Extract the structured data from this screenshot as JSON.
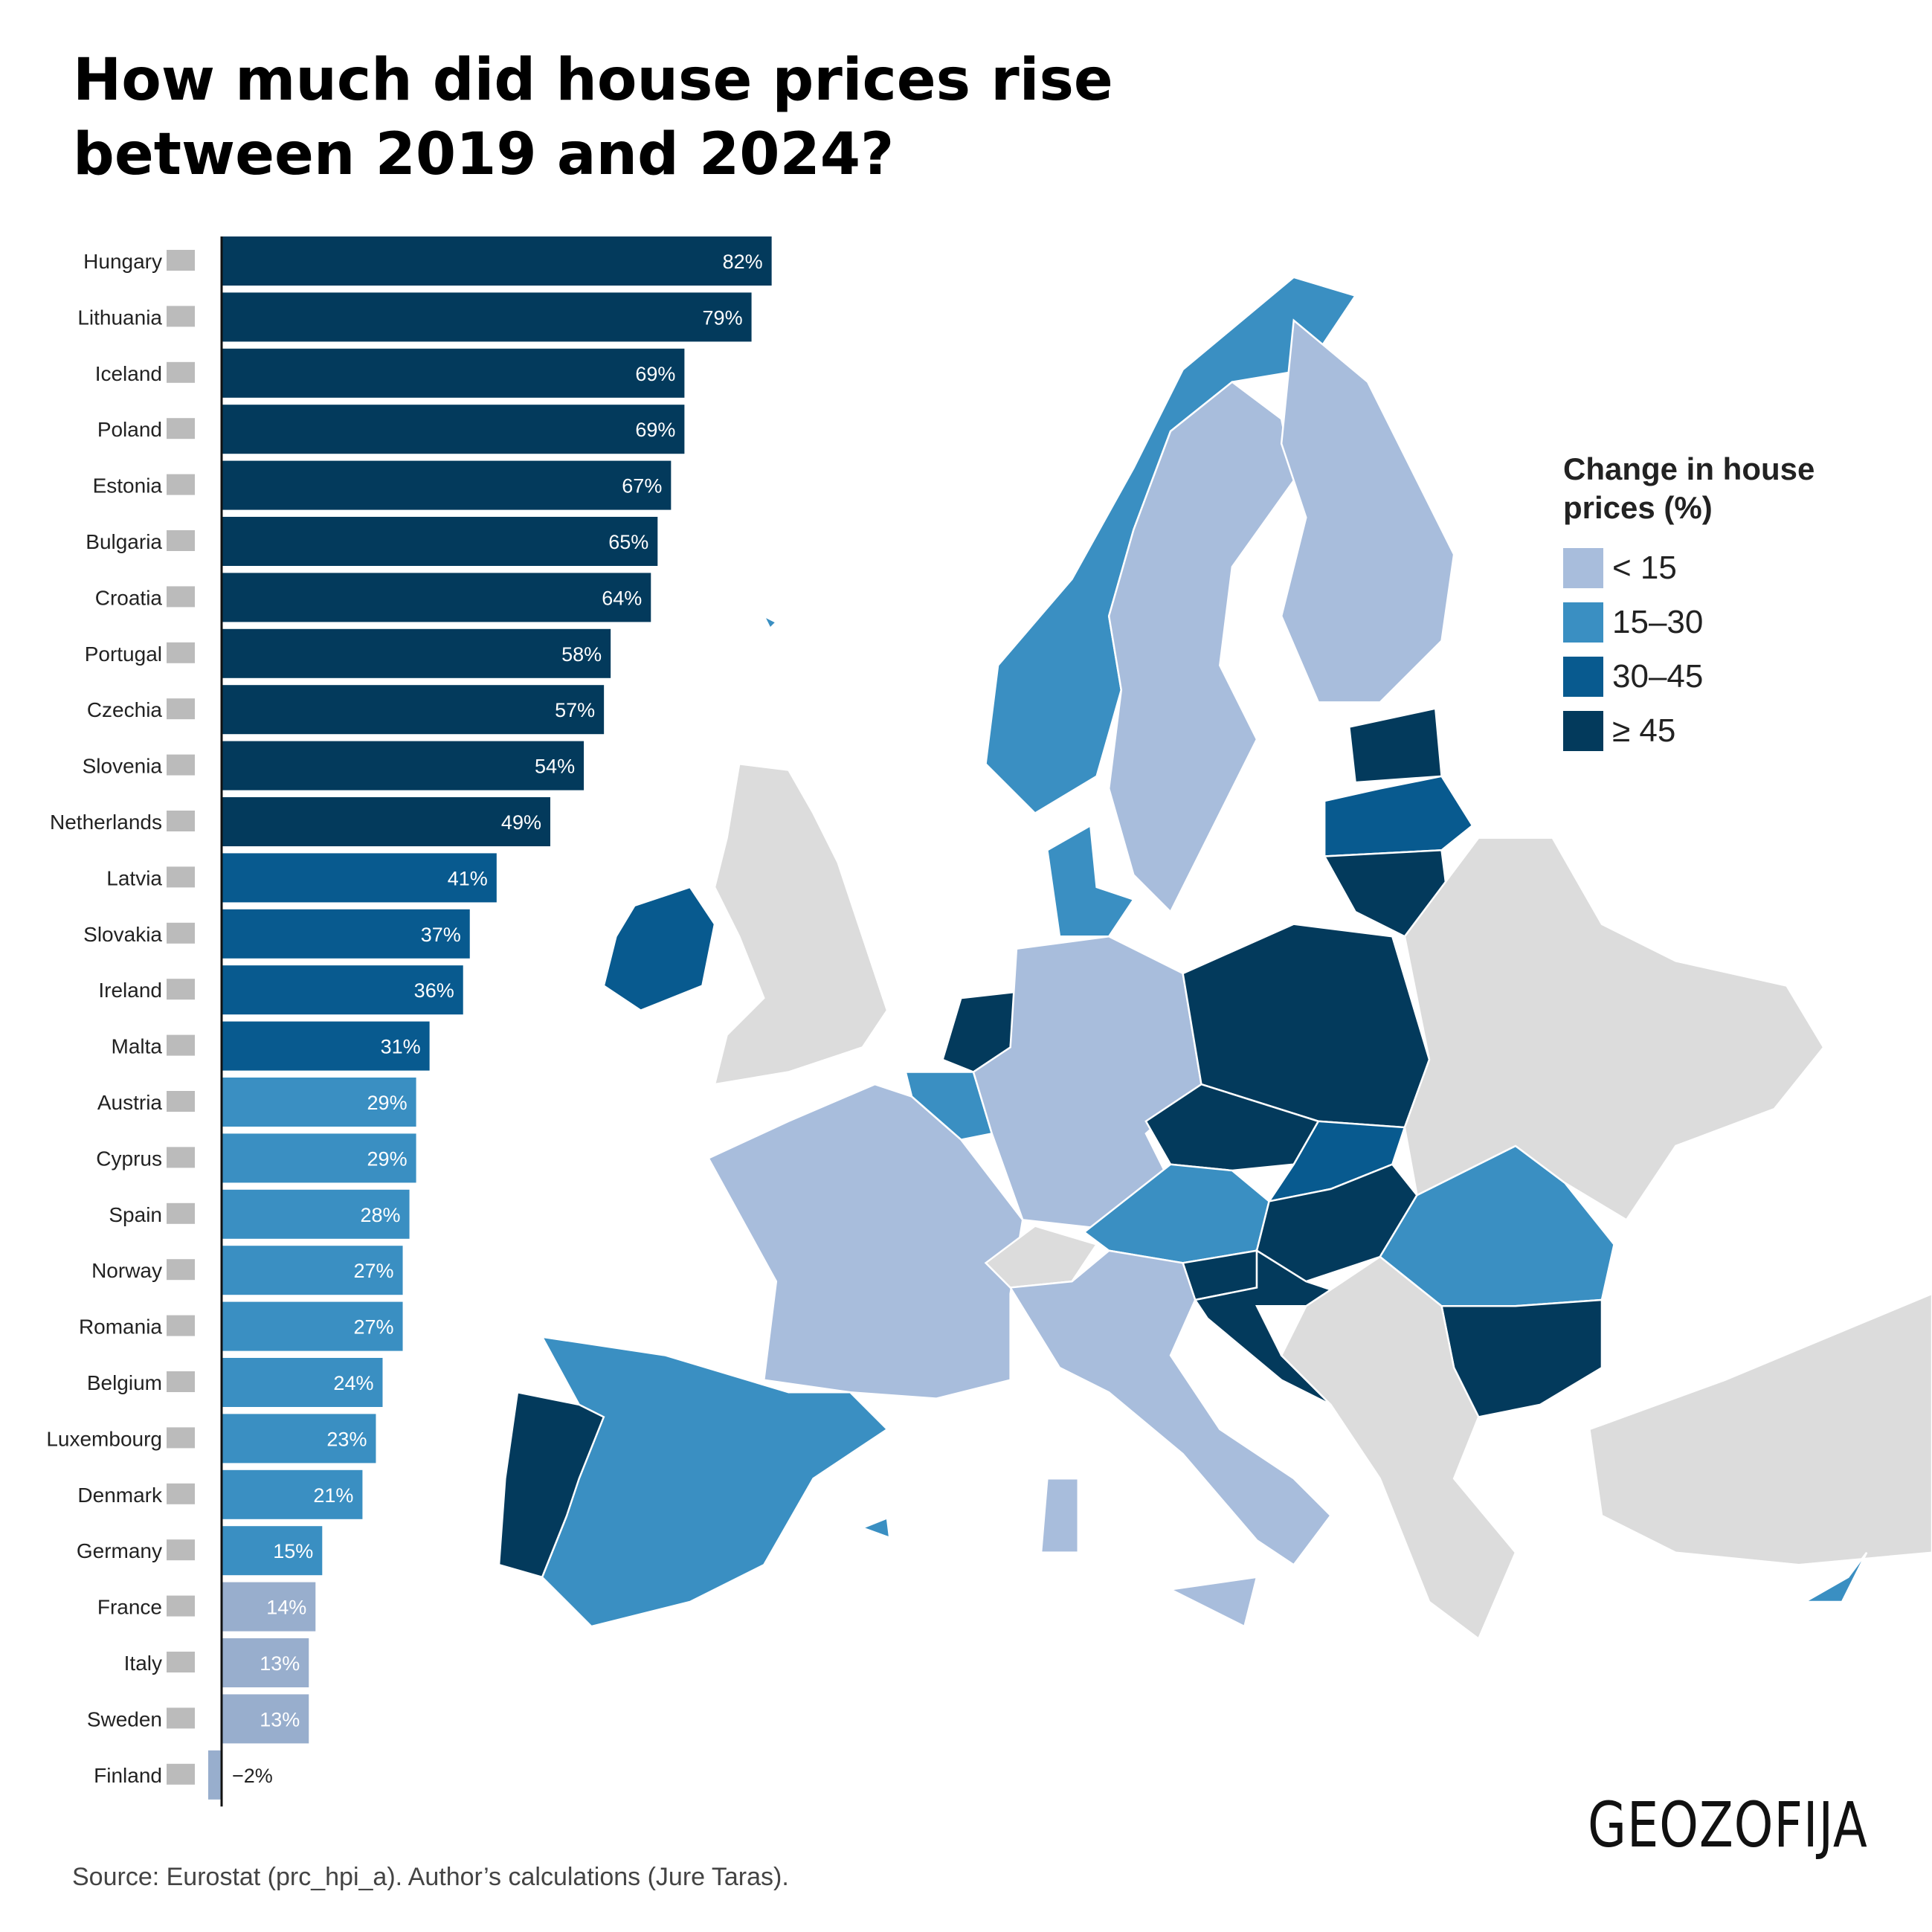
{
  "title_line1": "How much did house prices rise",
  "title_line2": "between 2019 and 2024?",
  "chart_data": {
    "type": "bar",
    "orientation": "horizontal",
    "categories": [
      "Hungary",
      "Lithuania",
      "Iceland",
      "Poland",
      "Estonia",
      "Bulgaria",
      "Croatia",
      "Portugal",
      "Czechia",
      "Slovenia",
      "Netherlands",
      "Latvia",
      "Slovakia",
      "Ireland",
      "Malta",
      "Austria",
      "Cyprus",
      "Spain",
      "Norway",
      "Romania",
      "Belgium",
      "Luxembourg",
      "Denmark",
      "Germany",
      "France",
      "Italy",
      "Sweden",
      "Finland"
    ],
    "values": [
      82,
      79,
      69,
      69,
      67,
      65,
      64,
      58,
      57,
      54,
      49,
      41,
      37,
      36,
      31,
      29,
      29,
      28,
      27,
      27,
      24,
      23,
      21,
      15,
      14,
      13,
      13,
      -2
    ],
    "labels": [
      "82%",
      "79%",
      "69%",
      "69%",
      "67%",
      "65%",
      "64%",
      "58%",
      "57%",
      "54%",
      "49%",
      "41%",
      "37%",
      "36%",
      "31%",
      "29%",
      "29%",
      "28%",
      "27%",
      "27%",
      "24%",
      "23%",
      "21%",
      "15%",
      "14%",
      "13%",
      "13%",
      "−2%"
    ],
    "unit": "%",
    "grid": false
  },
  "legend": {
    "title_line1": "Change in house",
    "title_line2": "prices (%)",
    "items": [
      {
        "label": "< 15",
        "color": "#a8bddc"
      },
      {
        "label": "15–30",
        "color": "#3a8fc2"
      },
      {
        "label": "30–45",
        "color": "#085a8f"
      },
      {
        "label": "≥ 45",
        "color": "#033a5c"
      }
    ]
  },
  "bar_colors": {
    "lt15": "#98aecd",
    "15_30": "#3a8fc2",
    "30_45": "#085a8f",
    "ge45": "#033a5c"
  },
  "no_data_color": "#dcdcdc",
  "logo": "GEOZOFIJA",
  "source": "Source: Eurostat (prc_hpi_a). Author’s calculations (Jure Taras)."
}
